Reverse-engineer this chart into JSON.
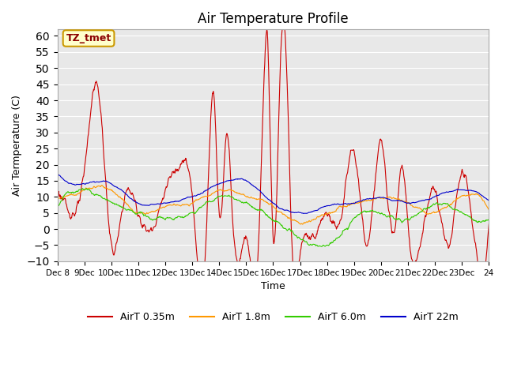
{
  "title": "Air Temperature Profile",
  "xlabel": "Time",
  "ylabel": "Air Termperature (C)",
  "ylim": [
    -10,
    62
  ],
  "yticks": [
    -10,
    -5,
    0,
    5,
    10,
    15,
    20,
    25,
    30,
    35,
    40,
    45,
    50,
    55,
    60
  ],
  "xtick_labels": [
    "Dec 8",
    "9Dec",
    "10Dec",
    "11Dec",
    "12Dec",
    "13Dec",
    "14Dec",
    "15Dec",
    "16Dec",
    "17Dec",
    "18Dec",
    "19Dec",
    "20Dec",
    "21Dec",
    "22Dec",
    "23Dec",
    "24"
  ],
  "colors": {
    "AirT 0.35m": "#cc0000",
    "AirT 1.8m": "#ff9900",
    "AirT 6.0m": "#33cc00",
    "AirT 22m": "#0000cc"
  },
  "bg_color": "#e8e8e8",
  "annotation_text": "TZ_tmet",
  "annotation_bg": "#ffffcc",
  "annotation_border": "#cc9900"
}
